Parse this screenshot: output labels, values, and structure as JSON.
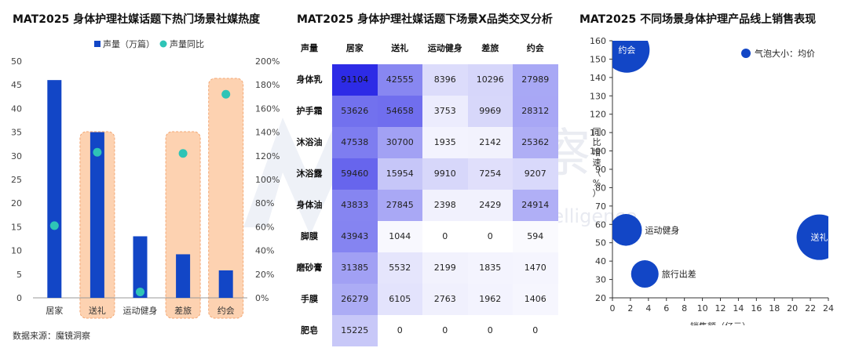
{
  "titles": {
    "left": "MAT2025 身体护理社媒话题下热门场景社媒热度",
    "middle": "MAT2025 身体护理社媒话题下场景X品类交叉分析",
    "right": "MAT2025 不同场景身体护理产品线上销售表现"
  },
  "source": "数据来源：魔镜洞察",
  "watermark": {
    "cn": "魔镜洞察",
    "en": "Moojing Market Intelligence"
  },
  "chart_data": [
    {
      "type": "bar",
      "categories": [
        "居家",
        "送礼",
        "运动健身",
        "差旅",
        "约会"
      ],
      "series": [
        {
          "name": "声量（万篇）",
          "values": [
            46,
            35,
            13,
            9.2,
            5.8
          ],
          "color": "#1246c6",
          "axis": "left"
        },
        {
          "name": "声量同比",
          "values": [
            61,
            123,
            5,
            122,
            172
          ],
          "color": "#2ec4b6",
          "axis": "right",
          "mark": "point",
          "unit": "%"
        }
      ],
      "highlighted_categories": [
        "送礼",
        "差旅",
        "约会"
      ],
      "highlight_color": "#fdd2b1",
      "ylim": [
        0,
        50
      ],
      "yticks": [
        0,
        5,
        10,
        15,
        20,
        25,
        30,
        35,
        40,
        45,
        50
      ],
      "y2lim": [
        0,
        200
      ],
      "y2ticks": [
        "0%",
        "20%",
        "40%",
        "60%",
        "80%",
        "100%",
        "120%",
        "140%",
        "160%",
        "180%",
        "200%"
      ],
      "legend": "top-center",
      "grid": false
    },
    {
      "type": "heatmap",
      "corner_label": "声量",
      "columns": [
        "居家",
        "送礼",
        "运动健身",
        "差旅",
        "约会"
      ],
      "rows": [
        "身体乳",
        "护手霜",
        "沐浴油",
        "沐浴露",
        "身体油",
        "脚膜",
        "磨砂膏",
        "手膜",
        "肥皂"
      ],
      "values": [
        [
          91104,
          42555,
          8396,
          10296,
          27989
        ],
        [
          53626,
          54658,
          3753,
          9969,
          28312
        ],
        [
          47538,
          30700,
          1935,
          2142,
          25362
        ],
        [
          59460,
          15954,
          9910,
          7254,
          9207
        ],
        [
          43833,
          27845,
          2398,
          2429,
          24914
        ],
        [
          43943,
          1044,
          0,
          0,
          594
        ],
        [
          31385,
          5532,
          2199,
          1835,
          1470
        ],
        [
          26279,
          6105,
          2763,
          1962,
          1406
        ],
        [
          15225,
          0,
          0,
          0,
          0
        ]
      ],
      "color_low": "#ffffff",
      "color_high": "#2d2be6"
    },
    {
      "type": "scatter",
      "bubble": true,
      "legend_label": "气泡大小：均价",
      "bubble_color": "#1246c6",
      "xlabel": "销售额（亿元）",
      "ylabel": "同比增速（%）",
      "xlim": [
        0,
        24
      ],
      "ylim": [
        20,
        160
      ],
      "xticks": [
        0,
        2,
        4,
        6,
        8,
        10,
        12,
        14,
        16,
        18,
        20,
        22,
        24
      ],
      "yticks": [
        20,
        30,
        40,
        50,
        60,
        70,
        80,
        90,
        100,
        110,
        120,
        130,
        140,
        150,
        160
      ],
      "points": [
        {
          "label": "约会",
          "x": 1.6,
          "y": 155,
          "size": 100,
          "label_inside": true
        },
        {
          "label": "运动健身",
          "x": 1.5,
          "y": 57,
          "size": 62,
          "label_inside": false
        },
        {
          "label": "送礼",
          "x": 23.0,
          "y": 53,
          "size": 100,
          "label_inside": true
        },
        {
          "label": "旅行出差",
          "x": 3.6,
          "y": 33,
          "size": 50,
          "label_inside": false
        }
      ]
    }
  ]
}
